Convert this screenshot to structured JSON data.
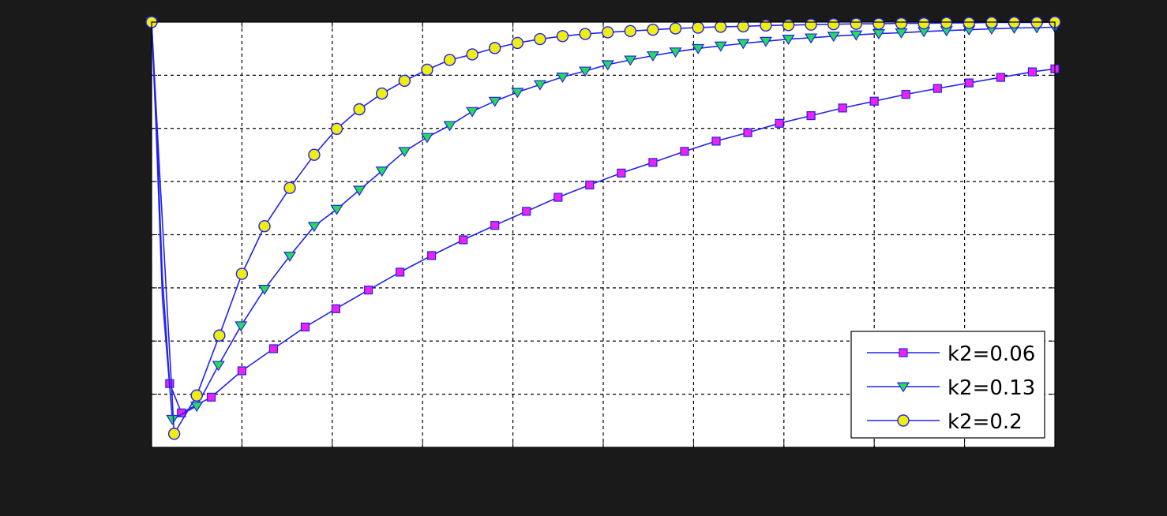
{
  "chart_data": {
    "type": "line",
    "title": "",
    "xlabel": "",
    "ylabel": "",
    "xlim": [
      0,
      10
    ],
    "ylim": [
      0,
      1
    ],
    "x_ticks": [
      0,
      1,
      2,
      3,
      4,
      5,
      6,
      7,
      8,
      9,
      10
    ],
    "y_ticks": [
      0,
      0.125,
      0.25,
      0.375,
      0.5,
      0.625,
      0.75,
      0.875,
      1
    ],
    "grid": true,
    "legend_position": "bottom-right",
    "colors": {
      "axes_bg": "#ffffff",
      "page_bg": "#1a1a1a",
      "line": "#2222ee",
      "grid": "#000000"
    },
    "series": [
      {
        "name": "k2=0.06",
        "marker": "square",
        "marker_fill": "#ee22ee",
        "x": [
          0,
          0.05,
          0.12,
          0.2,
          0.33,
          0.66,
          1.0,
          1.35,
          1.7,
          2.04,
          2.4,
          2.75,
          3.1,
          3.45,
          3.8,
          4.15,
          4.5,
          4.85,
          5.2,
          5.55,
          5.9,
          6.25,
          6.6,
          6.95,
          7.3,
          7.65,
          8.0,
          8.35,
          8.7,
          9.05,
          9.4,
          9.75,
          10.0
        ],
        "y": [
          1.0,
          0.78,
          0.4,
          0.15,
          0.081,
          0.118,
          0.18,
          0.232,
          0.283,
          0.326,
          0.37,
          0.412,
          0.451,
          0.488,
          0.522,
          0.555,
          0.588,
          0.617,
          0.645,
          0.67,
          0.696,
          0.72,
          0.74,
          0.762,
          0.78,
          0.798,
          0.814,
          0.83,
          0.844,
          0.857,
          0.87,
          0.883,
          0.89
        ]
      },
      {
        "name": "k2=0.13",
        "marker": "triangle-down",
        "marker_fill": "#22dd55",
        "x": [
          0,
          0.05,
          0.12,
          0.23,
          0.5,
          0.74,
          0.99,
          1.25,
          1.53,
          1.8,
          2.05,
          2.3,
          2.55,
          2.8,
          3.05,
          3.3,
          3.55,
          3.8,
          4.05,
          4.3,
          4.55,
          4.8,
          5.05,
          5.3,
          5.55,
          5.8,
          6.05,
          6.3,
          6.55,
          6.8,
          7.05,
          7.3,
          7.55,
          7.8,
          8.05,
          8.3,
          8.55,
          8.8,
          9.05,
          9.3,
          9.55,
          9.8,
          10.0
        ],
        "y": [
          1.0,
          0.75,
          0.35,
          0.066,
          0.097,
          0.193,
          0.286,
          0.372,
          0.45,
          0.52,
          0.56,
          0.605,
          0.65,
          0.696,
          0.729,
          0.757,
          0.79,
          0.814,
          0.835,
          0.853,
          0.871,
          0.885,
          0.9,
          0.911,
          0.921,
          0.93,
          0.938,
          0.944,
          0.95,
          0.955,
          0.96,
          0.963,
          0.967,
          0.97,
          0.973,
          0.975,
          0.978,
          0.98,
          0.982,
          0.984,
          0.986,
          0.987,
          0.988
        ]
      },
      {
        "name": "k2=0.2",
        "marker": "circle",
        "marker_fill": "#eeee11",
        "x": [
          0,
          0.07,
          0.25,
          0.5,
          0.75,
          1.0,
          1.25,
          1.53,
          1.8,
          2.05,
          2.3,
          2.55,
          2.8,
          3.05,
          3.3,
          3.55,
          3.8,
          4.05,
          4.3,
          4.55,
          4.8,
          5.05,
          5.3,
          5.55,
          5.8,
          6.05,
          6.3,
          6.55,
          6.8,
          7.05,
          7.3,
          7.55,
          7.8,
          8.05,
          8.3,
          8.55,
          8.8,
          9.05,
          9.3,
          9.55,
          9.8,
          10.0
        ],
        "y": [
          1.0,
          0.72,
          0.032,
          0.122,
          0.263,
          0.408,
          0.52,
          0.61,
          0.688,
          0.749,
          0.795,
          0.832,
          0.862,
          0.888,
          0.911,
          0.924,
          0.939,
          0.951,
          0.96,
          0.967,
          0.972,
          0.976,
          0.979,
          0.982,
          0.985,
          0.987,
          0.989,
          0.99,
          0.992,
          0.993,
          0.994,
          0.995,
          0.996,
          0.996,
          0.997,
          0.997,
          0.998,
          0.998,
          0.999,
          0.999,
          0.999,
          1.0
        ]
      }
    ]
  }
}
